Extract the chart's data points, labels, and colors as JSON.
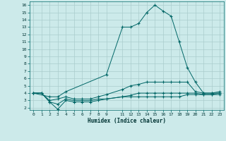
{
  "xlabel": "Humidex (Indice chaleur)",
  "bg_color": "#cceaea",
  "grid_color": "#aacccc",
  "line_color": "#006666",
  "xlim": [
    -0.5,
    23.5
  ],
  "ylim": [
    1.7,
    16.5
  ],
  "xticks": [
    0,
    1,
    2,
    3,
    4,
    5,
    6,
    7,
    8,
    9,
    11,
    12,
    13,
    14,
    15,
    16,
    17,
    18,
    19,
    20,
    21,
    22,
    23
  ],
  "yticks": [
    2,
    3,
    4,
    5,
    6,
    7,
    8,
    9,
    10,
    11,
    12,
    13,
    14,
    15,
    16
  ],
  "series1": [
    [
      0,
      4
    ],
    [
      2,
      3.5
    ],
    [
      3,
      3.5
    ],
    [
      4,
      4.2
    ],
    [
      9,
      6.5
    ],
    [
      11,
      13
    ],
    [
      12,
      13
    ],
    [
      13,
      13.5
    ],
    [
      14,
      15
    ],
    [
      15,
      16
    ],
    [
      16,
      15.2
    ],
    [
      17,
      14.5
    ],
    [
      18,
      11
    ],
    [
      19,
      7.5
    ],
    [
      20,
      5.5
    ],
    [
      21,
      4
    ],
    [
      22,
      4
    ],
    [
      23,
      4
    ]
  ],
  "series2": [
    [
      0,
      4
    ],
    [
      1,
      4
    ],
    [
      2,
      3
    ],
    [
      3,
      3.2
    ],
    [
      4,
      3.5
    ],
    [
      5,
      3.2
    ],
    [
      6,
      3.2
    ],
    [
      7,
      3.2
    ],
    [
      8,
      3.5
    ],
    [
      9,
      3.8
    ],
    [
      11,
      4.5
    ],
    [
      12,
      5
    ],
    [
      13,
      5.2
    ],
    [
      14,
      5.5
    ],
    [
      15,
      5.5
    ],
    [
      16,
      5.5
    ],
    [
      17,
      5.5
    ],
    [
      18,
      5.5
    ],
    [
      19,
      5.5
    ],
    [
      20,
      4.2
    ],
    [
      21,
      4
    ],
    [
      22,
      4
    ],
    [
      23,
      4.2
    ]
  ],
  "series3": [
    [
      0,
      4
    ],
    [
      1,
      4
    ],
    [
      2,
      2.8
    ],
    [
      3,
      1.8
    ],
    [
      4,
      3
    ],
    [
      5,
      2.8
    ],
    [
      6,
      2.8
    ],
    [
      7,
      2.8
    ],
    [
      8,
      3
    ],
    [
      9,
      3.2
    ],
    [
      11,
      3.5
    ],
    [
      12,
      3.7
    ],
    [
      13,
      4
    ],
    [
      14,
      4
    ],
    [
      15,
      4
    ],
    [
      16,
      4
    ],
    [
      17,
      4
    ],
    [
      18,
      4
    ],
    [
      19,
      4
    ],
    [
      20,
      4
    ],
    [
      21,
      3.8
    ],
    [
      22,
      3.8
    ],
    [
      23,
      3.8
    ]
  ],
  "series4": [
    [
      0,
      4
    ],
    [
      1,
      4
    ],
    [
      2,
      2.8
    ],
    [
      3,
      2.5
    ],
    [
      4,
      3.2
    ],
    [
      5,
      3
    ],
    [
      6,
      3
    ],
    [
      7,
      3
    ],
    [
      8,
      3.2
    ],
    [
      9,
      3.2
    ],
    [
      11,
      3.5
    ],
    [
      12,
      3.5
    ],
    [
      13,
      3.5
    ],
    [
      14,
      3.5
    ],
    [
      15,
      3.5
    ],
    [
      16,
      3.5
    ],
    [
      17,
      3.5
    ],
    [
      18,
      3.5
    ],
    [
      19,
      3.8
    ],
    [
      20,
      3.8
    ],
    [
      21,
      3.8
    ],
    [
      22,
      3.8
    ],
    [
      23,
      4
    ]
  ]
}
